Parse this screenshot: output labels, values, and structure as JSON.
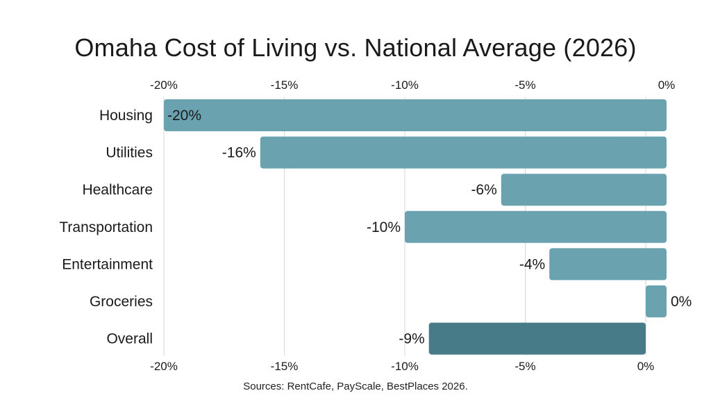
{
  "chart_data": {
    "type": "bar",
    "orientation": "horizontal",
    "title": "Omaha Cost of Living vs. National Average (2026)",
    "source": "Sources: RentCafe, PayScale, BestPlaces 2026.",
    "categories": [
      "Housing",
      "Utilities",
      "Healthcare",
      "Transportation",
      "Entertainment",
      "Groceries",
      "Overall"
    ],
    "values": [
      -20,
      -16,
      -6,
      -10,
      -4,
      0,
      -9
    ],
    "data_labels": [
      "-20%",
      "-16%",
      "-6%",
      "-10%",
      "-4%",
      "0%",
      "-9%"
    ],
    "xlim": [
      -20,
      0
    ],
    "ticks": [
      -20,
      -15,
      -10,
      -5,
      0
    ],
    "tick_labels": [
      "-20%",
      "-15%",
      "-10%",
      "-5%",
      "0%"
    ],
    "grid": true,
    "colors": {
      "bar": "#6aa2b0",
      "highlight_bar": "#467b87",
      "highlight_category": "Overall"
    }
  }
}
